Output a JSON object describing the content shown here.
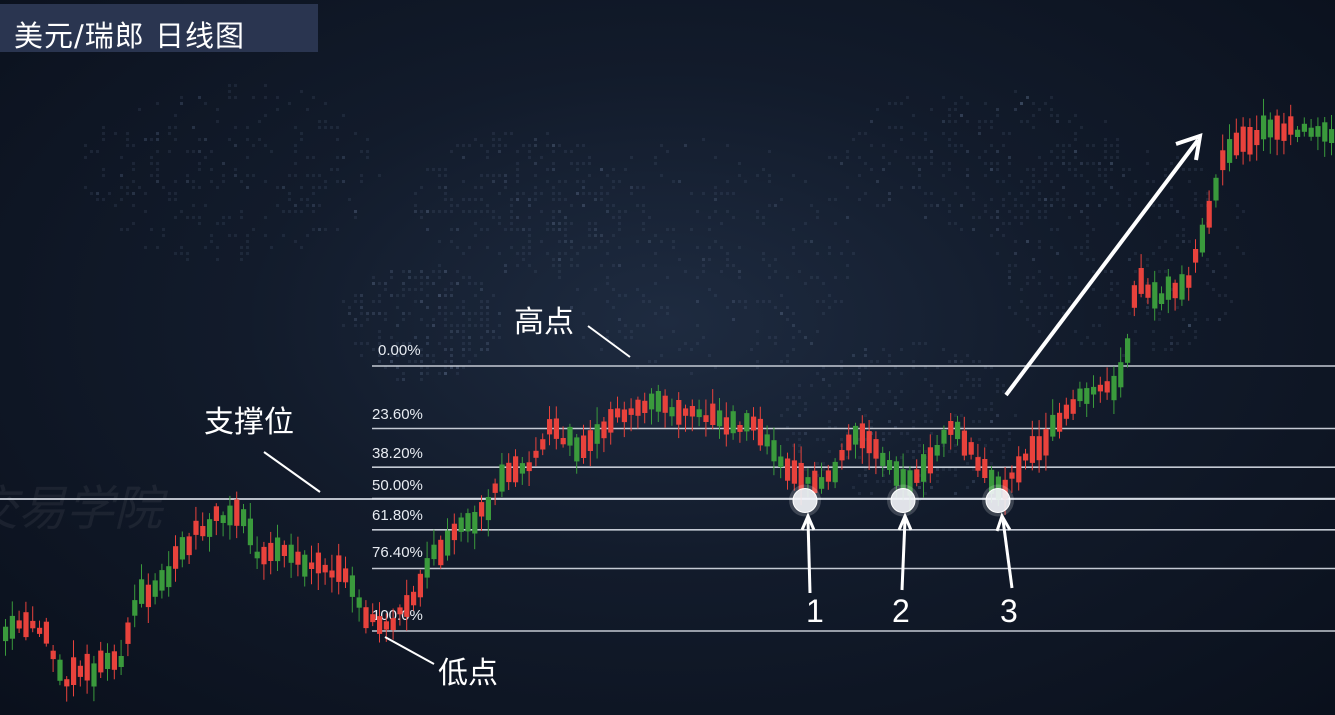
{
  "chart_data": {
    "type": "candlestick",
    "title": "美元/瑞郎 日线图",
    "fib_levels": [
      {
        "label": "0.00%",
        "ratio": 0.0
      },
      {
        "label": "23.60%",
        "ratio": 0.236
      },
      {
        "label": "38.20%",
        "ratio": 0.382
      },
      {
        "label": "50.00%",
        "ratio": 0.5
      },
      {
        "label": "61.80%",
        "ratio": 0.618
      },
      {
        "label": "76.40%",
        "ratio": 0.764
      },
      {
        "label": "100.0%",
        "ratio": 1.0
      }
    ],
    "annotations": {
      "high": "高点",
      "low": "低点",
      "support": "支撑位",
      "touch_points": [
        "1",
        "2",
        "3"
      ]
    },
    "colors": {
      "bull": "#e8423c",
      "bear": "#3a9a3c",
      "lines": "#d8dde6",
      "text": "#ffffff"
    },
    "watermark": "交易学院"
  }
}
